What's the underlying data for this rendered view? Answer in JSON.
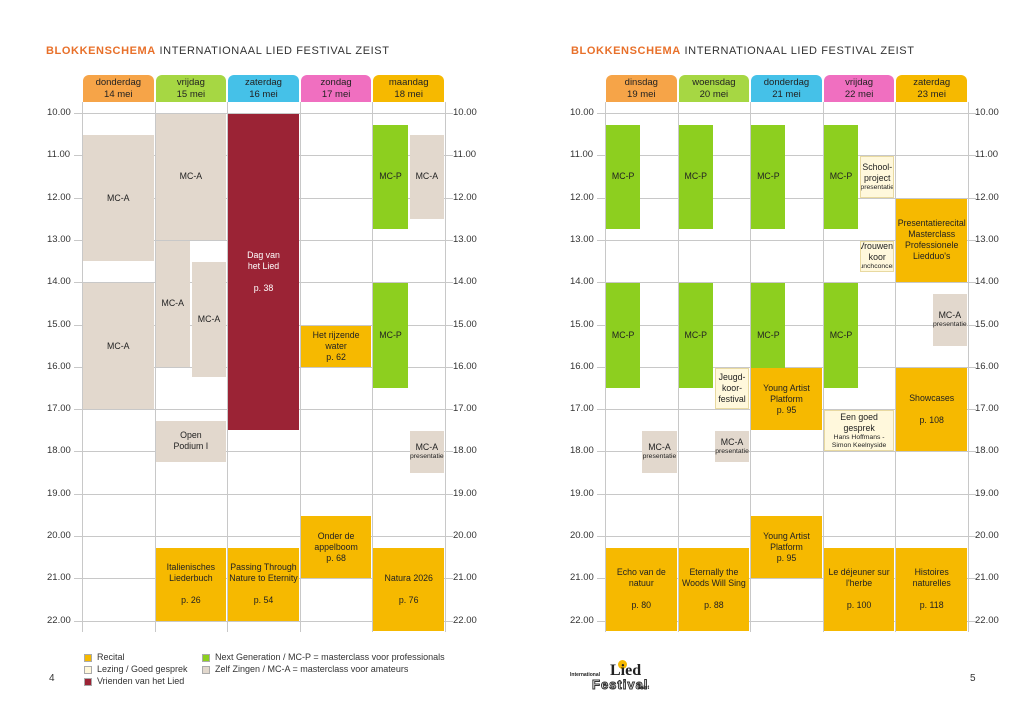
{
  "header": {
    "title_bold": "BLOKKENSCHEMA",
    "title_rest": "INTERNATIONAAL LIED FESTIVAL ZEIST"
  },
  "times": [
    "10.00",
    "11.00",
    "12.00",
    "13.00",
    "14.00",
    "15.00",
    "16.00",
    "17.00",
    "18.00",
    "19.00",
    "20.00",
    "21.00",
    "22.00"
  ],
  "left_page": {
    "page_number": "4",
    "days": [
      {
        "name": "donderdag",
        "date": "14 mei",
        "color": "#f6a448"
      },
      {
        "name": "vrijdag",
        "date": "15 mei",
        "color": "#a6d743"
      },
      {
        "name": "zaterdag",
        "date": "16 mei",
        "color": "#45c1e8"
      },
      {
        "name": "zondag",
        "date": "17 mei",
        "color": "#f06fc0"
      },
      {
        "name": "maandag",
        "date": "18 mei",
        "color": "#f6b900"
      }
    ],
    "blocks": [
      {
        "day": 0,
        "start": 10.5,
        "end": 13.5,
        "frac": [
          0,
          1
        ],
        "type": "zelf",
        "lines": [
          "MC-A"
        ]
      },
      {
        "day": 0,
        "start": 14.0,
        "end": 17.0,
        "frac": [
          0,
          1
        ],
        "type": "zelf",
        "lines": [
          "MC-A"
        ]
      },
      {
        "day": 1,
        "start": 10.0,
        "end": 13.0,
        "frac": [
          0,
          1
        ],
        "type": "zelf",
        "lines": [
          "MC-A"
        ]
      },
      {
        "day": 1,
        "start": 13.0,
        "end": 16.0,
        "frac": [
          0,
          0.5
        ],
        "type": "zelf",
        "lines": [
          "MC-A"
        ]
      },
      {
        "day": 1,
        "start": 13.5,
        "end": 16.25,
        "frac": [
          0.5,
          1
        ],
        "type": "zelf",
        "lines": [
          "MC-A"
        ]
      },
      {
        "day": 1,
        "start": 17.25,
        "end": 18.25,
        "frac": [
          0,
          1
        ],
        "type": "zelf",
        "lines": [
          "Open",
          "Podium I"
        ]
      },
      {
        "day": 1,
        "start": 20.25,
        "end": 22.0,
        "frac": [
          0,
          1
        ],
        "type": "recital",
        "lines": [
          "Italienisches",
          "Liederbuch",
          "",
          "p. 26"
        ]
      },
      {
        "day": 2,
        "start": 10.0,
        "end": 17.5,
        "frac": [
          0,
          1
        ],
        "type": "vrienden",
        "lines": [
          "Dag van",
          "het Lied",
          "",
          "p. 38"
        ]
      },
      {
        "day": 2,
        "start": 20.25,
        "end": 22.0,
        "frac": [
          0,
          1
        ],
        "type": "recital",
        "lines": [
          "Passing Through",
          "Nature to Eternity",
          "",
          "p. 54"
        ]
      },
      {
        "day": 3,
        "start": 15.0,
        "end": 16.0,
        "frac": [
          0,
          1
        ],
        "type": "recital",
        "lines": [
          "Het rijzende water",
          "p. 62"
        ]
      },
      {
        "day": 3,
        "start": 19.5,
        "end": 21.0,
        "frac": [
          0,
          1
        ],
        "type": "recital",
        "lines": [
          "Onder de",
          "appelboom",
          "p. 68"
        ]
      },
      {
        "day": 4,
        "start": 10.25,
        "end": 12.75,
        "frac": [
          0,
          0.5
        ],
        "type": "nextgen",
        "lines": [
          "MC-P"
        ]
      },
      {
        "day": 4,
        "start": 10.5,
        "end": 12.5,
        "frac": [
          0.5,
          1
        ],
        "type": "zelf",
        "lines": [
          "MC-A"
        ]
      },
      {
        "day": 4,
        "start": 14.0,
        "end": 16.5,
        "frac": [
          0,
          0.5
        ],
        "type": "nextgen",
        "lines": [
          "MC-P"
        ]
      },
      {
        "day": 4,
        "start": 17.5,
        "end": 18.5,
        "frac": [
          0.5,
          1
        ],
        "type": "zelf",
        "lines": [
          "MC-A"
        ],
        "sub": "presentatie"
      },
      {
        "day": 4,
        "start": 20.25,
        "end": 22.25,
        "frac": [
          0,
          1
        ],
        "type": "recital",
        "lines": [
          "Natura 2026",
          "",
          "p. 76"
        ]
      }
    ]
  },
  "right_page": {
    "page_number": "5",
    "days": [
      {
        "name": "dinsdag",
        "date": "19 mei",
        "color": "#f6a448"
      },
      {
        "name": "woensdag",
        "date": "20 mei",
        "color": "#a6d743"
      },
      {
        "name": "donderdag",
        "date": "21 mei",
        "color": "#45c1e8"
      },
      {
        "name": "vrijdag",
        "date": "22 mei",
        "color": "#f06fc0"
      },
      {
        "name": "zaterdag",
        "date": "23 mei",
        "color": "#f6b900"
      }
    ],
    "blocks": [
      {
        "day": 0,
        "start": 10.25,
        "end": 12.75,
        "frac": [
          0,
          0.5
        ],
        "type": "nextgen",
        "lines": [
          "MC-P"
        ]
      },
      {
        "day": 0,
        "start": 14.0,
        "end": 16.5,
        "frac": [
          0,
          0.5
        ],
        "type": "nextgen",
        "lines": [
          "MC-P"
        ]
      },
      {
        "day": 0,
        "start": 17.5,
        "end": 18.5,
        "frac": [
          0.5,
          1
        ],
        "type": "zelf",
        "lines": [
          "MC-A"
        ],
        "sub": "presentatie"
      },
      {
        "day": 0,
        "start": 20.25,
        "end": 22.25,
        "frac": [
          0,
          1
        ],
        "type": "recital",
        "lines": [
          "Echo van de",
          "natuur",
          "",
          "p. 80"
        ]
      },
      {
        "day": 1,
        "start": 10.25,
        "end": 12.75,
        "frac": [
          0,
          0.5
        ],
        "type": "nextgen",
        "lines": [
          "MC-P"
        ]
      },
      {
        "day": 1,
        "start": 14.0,
        "end": 16.5,
        "frac": [
          0,
          0.5
        ],
        "type": "nextgen",
        "lines": [
          "MC-P"
        ]
      },
      {
        "day": 1,
        "start": 16.0,
        "end": 17.0,
        "frac": [
          0.5,
          1
        ],
        "type": "lezing",
        "lines": [
          "Jeugd-",
          "koor-",
          "festival"
        ]
      },
      {
        "day": 1,
        "start": 17.5,
        "end": 18.25,
        "frac": [
          0.5,
          1
        ],
        "type": "zelf",
        "lines": [
          "MC-A"
        ],
        "sub": "presentatie"
      },
      {
        "day": 1,
        "start": 20.25,
        "end": 22.25,
        "frac": [
          0,
          1
        ],
        "type": "recital",
        "lines": [
          "Eternally the",
          "Woods Will Sing",
          "",
          "p. 88"
        ]
      },
      {
        "day": 2,
        "start": 10.25,
        "end": 12.75,
        "frac": [
          0,
          0.5
        ],
        "type": "nextgen",
        "lines": [
          "MC-P"
        ]
      },
      {
        "day": 2,
        "start": 14.0,
        "end": 16.5,
        "frac": [
          0,
          0.5
        ],
        "type": "nextgen",
        "lines": [
          "MC-P"
        ]
      },
      {
        "day": 2,
        "start": 16.0,
        "end": 17.5,
        "frac": [
          0,
          1
        ],
        "type": "recital",
        "lines": [
          "Young Artist",
          "Platform",
          "p. 95"
        ]
      },
      {
        "day": 2,
        "start": 19.5,
        "end": 21.0,
        "frac": [
          0,
          1
        ],
        "type": "recital",
        "lines": [
          "Young Artist",
          "Platform",
          "p. 95"
        ]
      },
      {
        "day": 3,
        "start": 10.25,
        "end": 12.75,
        "frac": [
          0,
          0.5
        ],
        "type": "nextgen",
        "lines": [
          "MC-P"
        ]
      },
      {
        "day": 3,
        "start": 11.0,
        "end": 12.0,
        "frac": [
          0.5,
          1
        ],
        "type": "lezing",
        "lines": [
          "School-",
          "project"
        ],
        "sub": "presentatie"
      },
      {
        "day": 3,
        "start": 13.0,
        "end": 13.75,
        "frac": [
          0.5,
          1
        ],
        "type": "lezing",
        "lines": [
          "Vrouwen-",
          "koor"
        ],
        "sub": "lunchconcert"
      },
      {
        "day": 3,
        "start": 14.0,
        "end": 16.5,
        "frac": [
          0,
          0.5
        ],
        "type": "nextgen",
        "lines": [
          "MC-P"
        ]
      },
      {
        "day": 3,
        "start": 17.0,
        "end": 18.0,
        "frac": [
          0,
          1
        ],
        "type": "lezing",
        "lines": [
          "Een goed gesprek"
        ],
        "sub": "Hans Hoffmans - Simon Keelnyside"
      },
      {
        "day": 3,
        "start": 20.25,
        "end": 22.25,
        "frac": [
          0,
          1
        ],
        "type": "recital",
        "lines": [
          "Le déjeuner sur",
          "l'herbe",
          "",
          "p. 100"
        ]
      },
      {
        "day": 4,
        "start": 12.0,
        "end": 14.0,
        "frac": [
          0,
          1
        ],
        "type": "recital",
        "lines": [
          "Presentatierecital",
          "Masterclass",
          "Professionele",
          "Liedduo's"
        ]
      },
      {
        "day": 4,
        "start": 14.25,
        "end": 15.5,
        "frac": [
          0.5,
          1
        ],
        "type": "zelf",
        "lines": [
          "MC-A"
        ],
        "sub": "presentatie"
      },
      {
        "day": 4,
        "start": 16.0,
        "end": 18.0,
        "frac": [
          0,
          1
        ],
        "type": "recital",
        "lines": [
          "Showcases",
          "",
          "p. 108"
        ]
      },
      {
        "day": 4,
        "start": 20.25,
        "end": 22.25,
        "frac": [
          0,
          1
        ],
        "type": "recital",
        "lines": [
          "Histoires",
          "naturelles",
          "",
          "p. 118"
        ]
      }
    ]
  },
  "legend": [
    {
      "type": "recital",
      "label": "Recital"
    },
    {
      "type": "lezing",
      "label": "Lezing / Goed gesprek"
    },
    {
      "type": "vrienden",
      "label": "Vrienden van het Lied"
    },
    {
      "type": "nextgen",
      "label": "Next Generation / MC-P = masterclass voor professionals"
    },
    {
      "type": "zelf",
      "label": "Zelf Zingen / MC-A = masterclass voor amateurs"
    }
  ],
  "logo": {
    "top": "International",
    "main": "Lied",
    "sub": "Festival",
    "place": "zeist"
  }
}
